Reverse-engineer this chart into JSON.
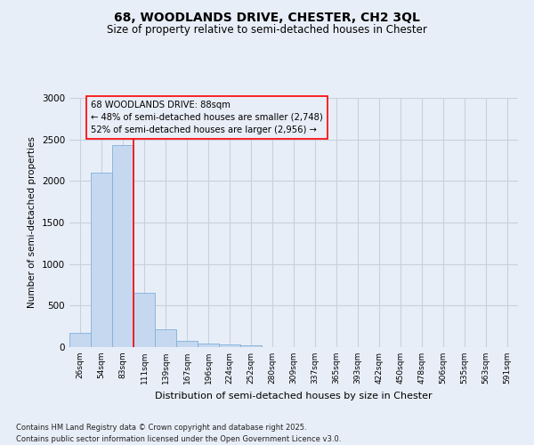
{
  "title_line1": "68, WOODLANDS DRIVE, CHESTER, CH2 3QL",
  "title_line2": "Size of property relative to semi-detached houses in Chester",
  "xlabel": "Distribution of semi-detached houses by size in Chester",
  "ylabel": "Number of semi-detached properties",
  "categories": [
    "26sqm",
    "54sqm",
    "83sqm",
    "111sqm",
    "139sqm",
    "167sqm",
    "196sqm",
    "224sqm",
    "252sqm",
    "280sqm",
    "309sqm",
    "337sqm",
    "365sqm",
    "393sqm",
    "422sqm",
    "450sqm",
    "478sqm",
    "506sqm",
    "535sqm",
    "563sqm",
    "591sqm"
  ],
  "values": [
    175,
    2100,
    2430,
    650,
    210,
    80,
    45,
    35,
    20,
    5,
    0,
    0,
    0,
    0,
    0,
    0,
    0,
    0,
    0,
    0,
    0
  ],
  "bar_color": "#c5d8f0",
  "bar_edge_color": "#7fb0d8",
  "grid_color": "#c8d0de",
  "annotation_box_text_line1": "68 WOODLANDS DRIVE: 88sqm",
  "annotation_box_text_line2": "← 48% of semi-detached houses are smaller (2,748)",
  "annotation_box_text_line3": "52% of semi-detached houses are larger (2,956) →",
  "red_line_x": 2.5,
  "ylim": [
    0,
    3000
  ],
  "yticks": [
    0,
    500,
    1000,
    1500,
    2000,
    2500,
    3000
  ],
  "footnote_line1": "Contains HM Land Registry data © Crown copyright and database right 2025.",
  "footnote_line2": "Contains public sector information licensed under the Open Government Licence v3.0.",
  "bg_color": "#e8eef8"
}
